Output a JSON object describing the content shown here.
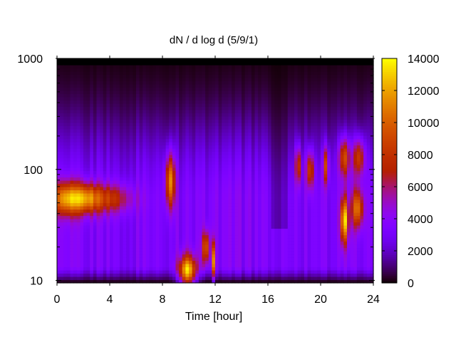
{
  "chart_data": {
    "type": "heatmap",
    "title": "dN / d log d (5/9/1)",
    "xlabel": "Time [hour]",
    "ylabel": "",
    "x_range": [
      0,
      24
    ],
    "y_range": [
      9.5,
      1000
    ],
    "y_scale": "log",
    "x_ticks": [
      0,
      4,
      8,
      12,
      16,
      20,
      24
    ],
    "x_tick_labels": [
      "0",
      "4",
      "8",
      "12",
      "16",
      "20",
      "24"
    ],
    "y_ticks": [
      10,
      100,
      1000
    ],
    "y_tick_labels": [
      "10",
      "100",
      "1000"
    ],
    "colorbar": {
      "range": [
        0,
        14000
      ],
      "ticks": [
        0,
        2000,
        4000,
        6000,
        8000,
        10000,
        12000,
        14000
      ],
      "tick_labels": [
        "0",
        "2000",
        "4000",
        "6000",
        "8000",
        "10000",
        "12000",
        "14000"
      ],
      "palette": "black-purple-red-orange-yellow"
    },
    "background_value": 3500,
    "features": [
      {
        "time": 0.8,
        "diameter": 55,
        "peak": 8500,
        "time_width": 0.9,
        "log_width": 0.1
      },
      {
        "time": 2.3,
        "diameter": 55,
        "peak": 5200,
        "time_width": 0.7,
        "log_width": 0.09
      },
      {
        "time": 4.0,
        "diameter": 55,
        "peak": 4800,
        "time_width": 1.2,
        "log_width": 0.09
      },
      {
        "time": 8.6,
        "diameter": 80,
        "peak": 8500,
        "time_width": 0.25,
        "log_width": 0.17
      },
      {
        "time": 9.9,
        "diameter": 12,
        "peak": 10500,
        "time_width": 0.45,
        "log_width": 0.1
      },
      {
        "time": 11.3,
        "diameter": 20,
        "peak": 6500,
        "time_width": 0.2,
        "log_width": 0.1
      },
      {
        "time": 11.9,
        "diameter": 15,
        "peak": 8000,
        "time_width": 0.07,
        "log_width": 0.12
      },
      {
        "time": 18.3,
        "diameter": 110,
        "peak": 6000,
        "time_width": 0.15,
        "log_width": 0.12
      },
      {
        "time": 19.2,
        "diameter": 100,
        "peak": 6200,
        "time_width": 0.2,
        "log_width": 0.12
      },
      {
        "time": 20.4,
        "diameter": 110,
        "peak": 6000,
        "time_width": 0.15,
        "log_width": 0.12
      },
      {
        "time": 21.8,
        "diameter": 35,
        "peak": 10000,
        "time_width": 0.2,
        "log_width": 0.14
      },
      {
        "time": 21.8,
        "diameter": 130,
        "peak": 6500,
        "time_width": 0.3,
        "log_width": 0.12
      },
      {
        "time": 22.8,
        "diameter": 45,
        "peak": 7500,
        "time_width": 0.3,
        "log_width": 0.12
      },
      {
        "time": 22.9,
        "diameter": 130,
        "peak": 6200,
        "time_width": 0.3,
        "log_width": 0.12
      }
    ]
  }
}
